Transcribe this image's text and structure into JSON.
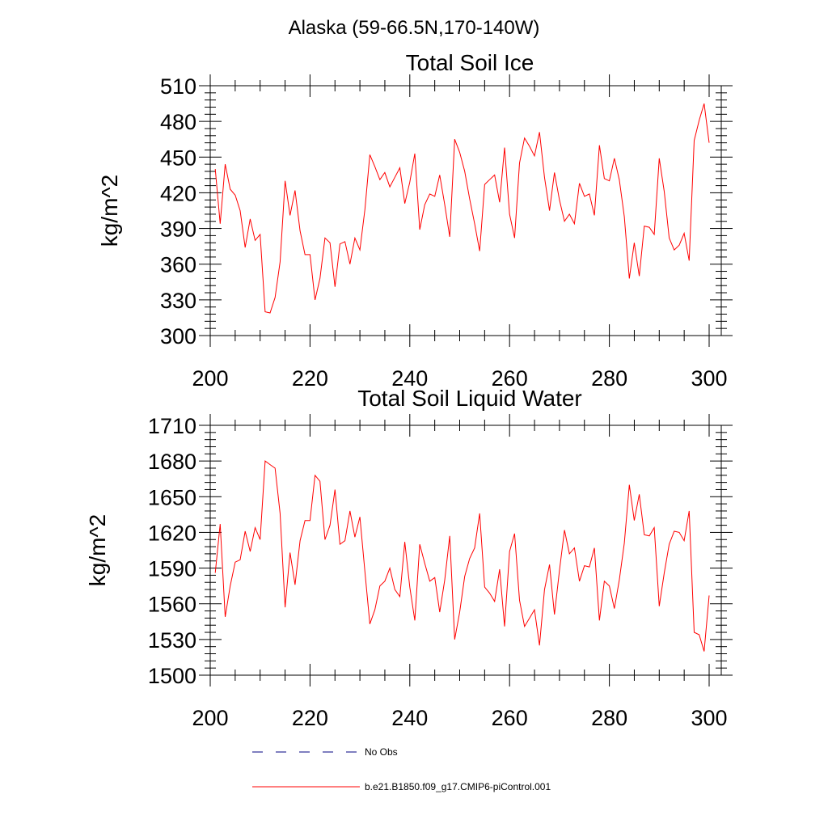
{
  "header": {
    "title": "Alaska (59-66.5N,170-140W)"
  },
  "legend": {
    "entries": [
      {
        "label": "No Obs",
        "color": "#000080",
        "style": "dashed"
      },
      {
        "label": "b.e21.B1850.f09_g17.CMIP6-piControl.001",
        "color": "#ff0000",
        "style": "solid"
      }
    ]
  },
  "chart_data": [
    {
      "type": "line",
      "title": "Total Soil Ice",
      "xlabel": "",
      "ylabel": "kg/m^2",
      "xlim": [
        200,
        300
      ],
      "ylim": [
        300,
        510
      ],
      "xticks": [
        200,
        220,
        240,
        260,
        280,
        300
      ],
      "yticks": [
        300,
        330,
        360,
        390,
        420,
        450,
        480,
        510
      ],
      "x_start": 201,
      "series": [
        {
          "color": "#ff0000",
          "values": [
            440,
            394,
            444,
            423,
            418,
            405,
            374,
            398,
            380,
            385,
            320,
            319,
            332,
            362,
            430,
            401,
            422,
            388,
            368,
            368,
            330,
            348,
            382,
            378,
            341,
            377,
            379,
            360,
            382,
            372,
            406,
            452,
            442,
            431,
            437,
            425,
            433,
            441,
            411,
            429,
            453,
            389,
            410,
            419,
            417,
            435,
            410,
            383,
            465,
            454,
            438,
            415,
            394,
            371,
            427,
            431,
            435,
            412,
            458,
            402,
            382,
            445,
            466,
            459,
            451,
            471,
            433,
            405,
            437,
            414,
            396,
            402,
            394,
            428,
            417,
            419,
            401,
            460,
            432,
            430,
            449,
            431,
            400,
            348,
            378,
            350,
            392,
            391,
            385,
            449,
            421,
            382,
            372,
            376,
            386,
            363,
            464,
            481,
            495,
            462
          ]
        }
      ]
    },
    {
      "type": "line",
      "title": "Total Soil Liquid Water",
      "xlabel": "",
      "ylabel": "kg/m^2",
      "xlim": [
        200,
        300
      ],
      "ylim": [
        1500,
        1710
      ],
      "xticks": [
        200,
        220,
        240,
        260,
        280,
        300
      ],
      "yticks": [
        1500,
        1530,
        1560,
        1590,
        1620,
        1650,
        1680,
        1710
      ],
      "x_start": 201,
      "series": [
        {
          "color": "#ff0000",
          "values": [
            1586,
            1627,
            1549,
            1575,
            1595,
            1597,
            1621,
            1604,
            1624,
            1614,
            1680,
            1677,
            1674,
            1636,
            1557,
            1603,
            1576,
            1613,
            1630,
            1630,
            1668,
            1663,
            1614,
            1626,
            1656,
            1610,
            1613,
            1638,
            1616,
            1633,
            1587,
            1543,
            1555,
            1575,
            1579,
            1590,
            1572,
            1566,
            1612,
            1574,
            1546,
            1610,
            1594,
            1579,
            1582,
            1553,
            1580,
            1617,
            1530,
            1553,
            1583,
            1598,
            1607,
            1636,
            1574,
            1569,
            1562,
            1589,
            1541,
            1604,
            1619,
            1563,
            1541,
            1548,
            1555,
            1525,
            1572,
            1593,
            1551,
            1588,
            1622,
            1602,
            1607,
            1579,
            1592,
            1591,
            1607,
            1546,
            1579,
            1575,
            1556,
            1580,
            1611,
            1660,
            1630,
            1652,
            1618,
            1617,
            1624,
            1558,
            1586,
            1610,
            1621,
            1620,
            1613,
            1638,
            1536,
            1534,
            1520,
            1567
          ]
        }
      ]
    }
  ]
}
